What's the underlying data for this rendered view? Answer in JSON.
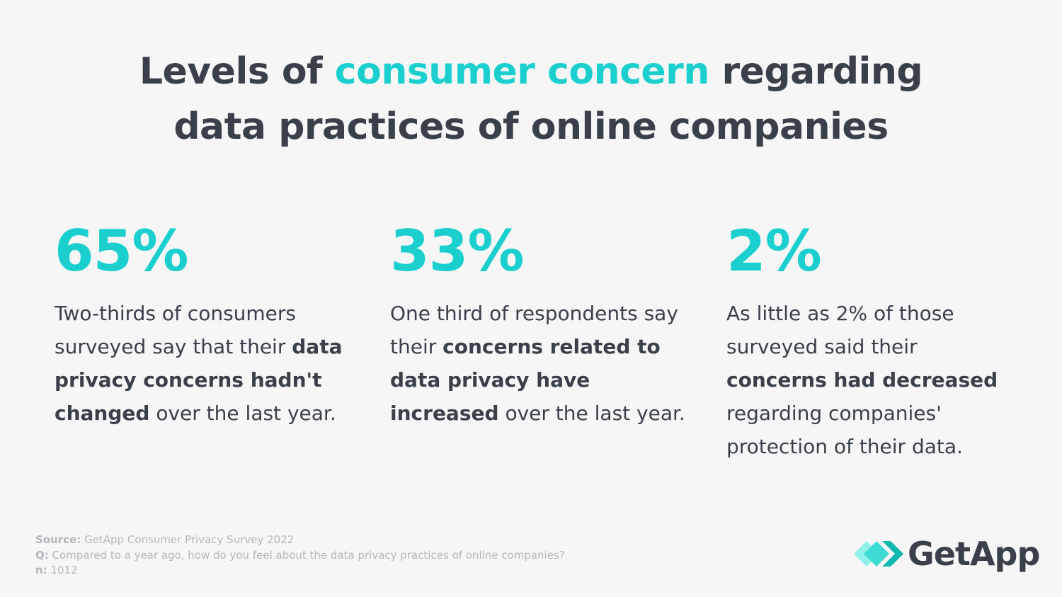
{
  "title": {
    "before": "Levels of",
    "highlight": "consumer concern",
    "after": "regarding",
    "line2": "data practices of online companies"
  },
  "stats": [
    {
      "figure": "65%",
      "segments": [
        {
          "text": "Two-thirds of consumers surveyed say that their",
          "bold": false
        },
        {
          "text": "data privacy concerns hadn't changed",
          "bold": true
        },
        {
          "text": "over the last year.",
          "bold": false
        }
      ]
    },
    {
      "figure": "33%",
      "segments": [
        {
          "text": "One third of respondents say their",
          "bold": false
        },
        {
          "text": "concerns related to data privacy have increased",
          "bold": true
        },
        {
          "text": "over the last year.",
          "bold": false
        }
      ]
    },
    {
      "figure": "2%",
      "segments": [
        {
          "text": "As little as 2% of those surveyed said their",
          "bold": false
        },
        {
          "text": "concerns had decreased",
          "bold": true
        },
        {
          "text": "regarding companies' protection of their data.",
          "bold": false
        }
      ]
    }
  ],
  "footer": [
    {
      "label": "Source:",
      "text": "GetApp Consumer Privacy Survey 2022"
    },
    {
      "label": "Q:",
      "text": "Compared to a year ago, how do you feel about the data privacy practices of online companies?"
    },
    {
      "label": "n:",
      "text": "1012"
    }
  ],
  "logo": "GetApp"
}
